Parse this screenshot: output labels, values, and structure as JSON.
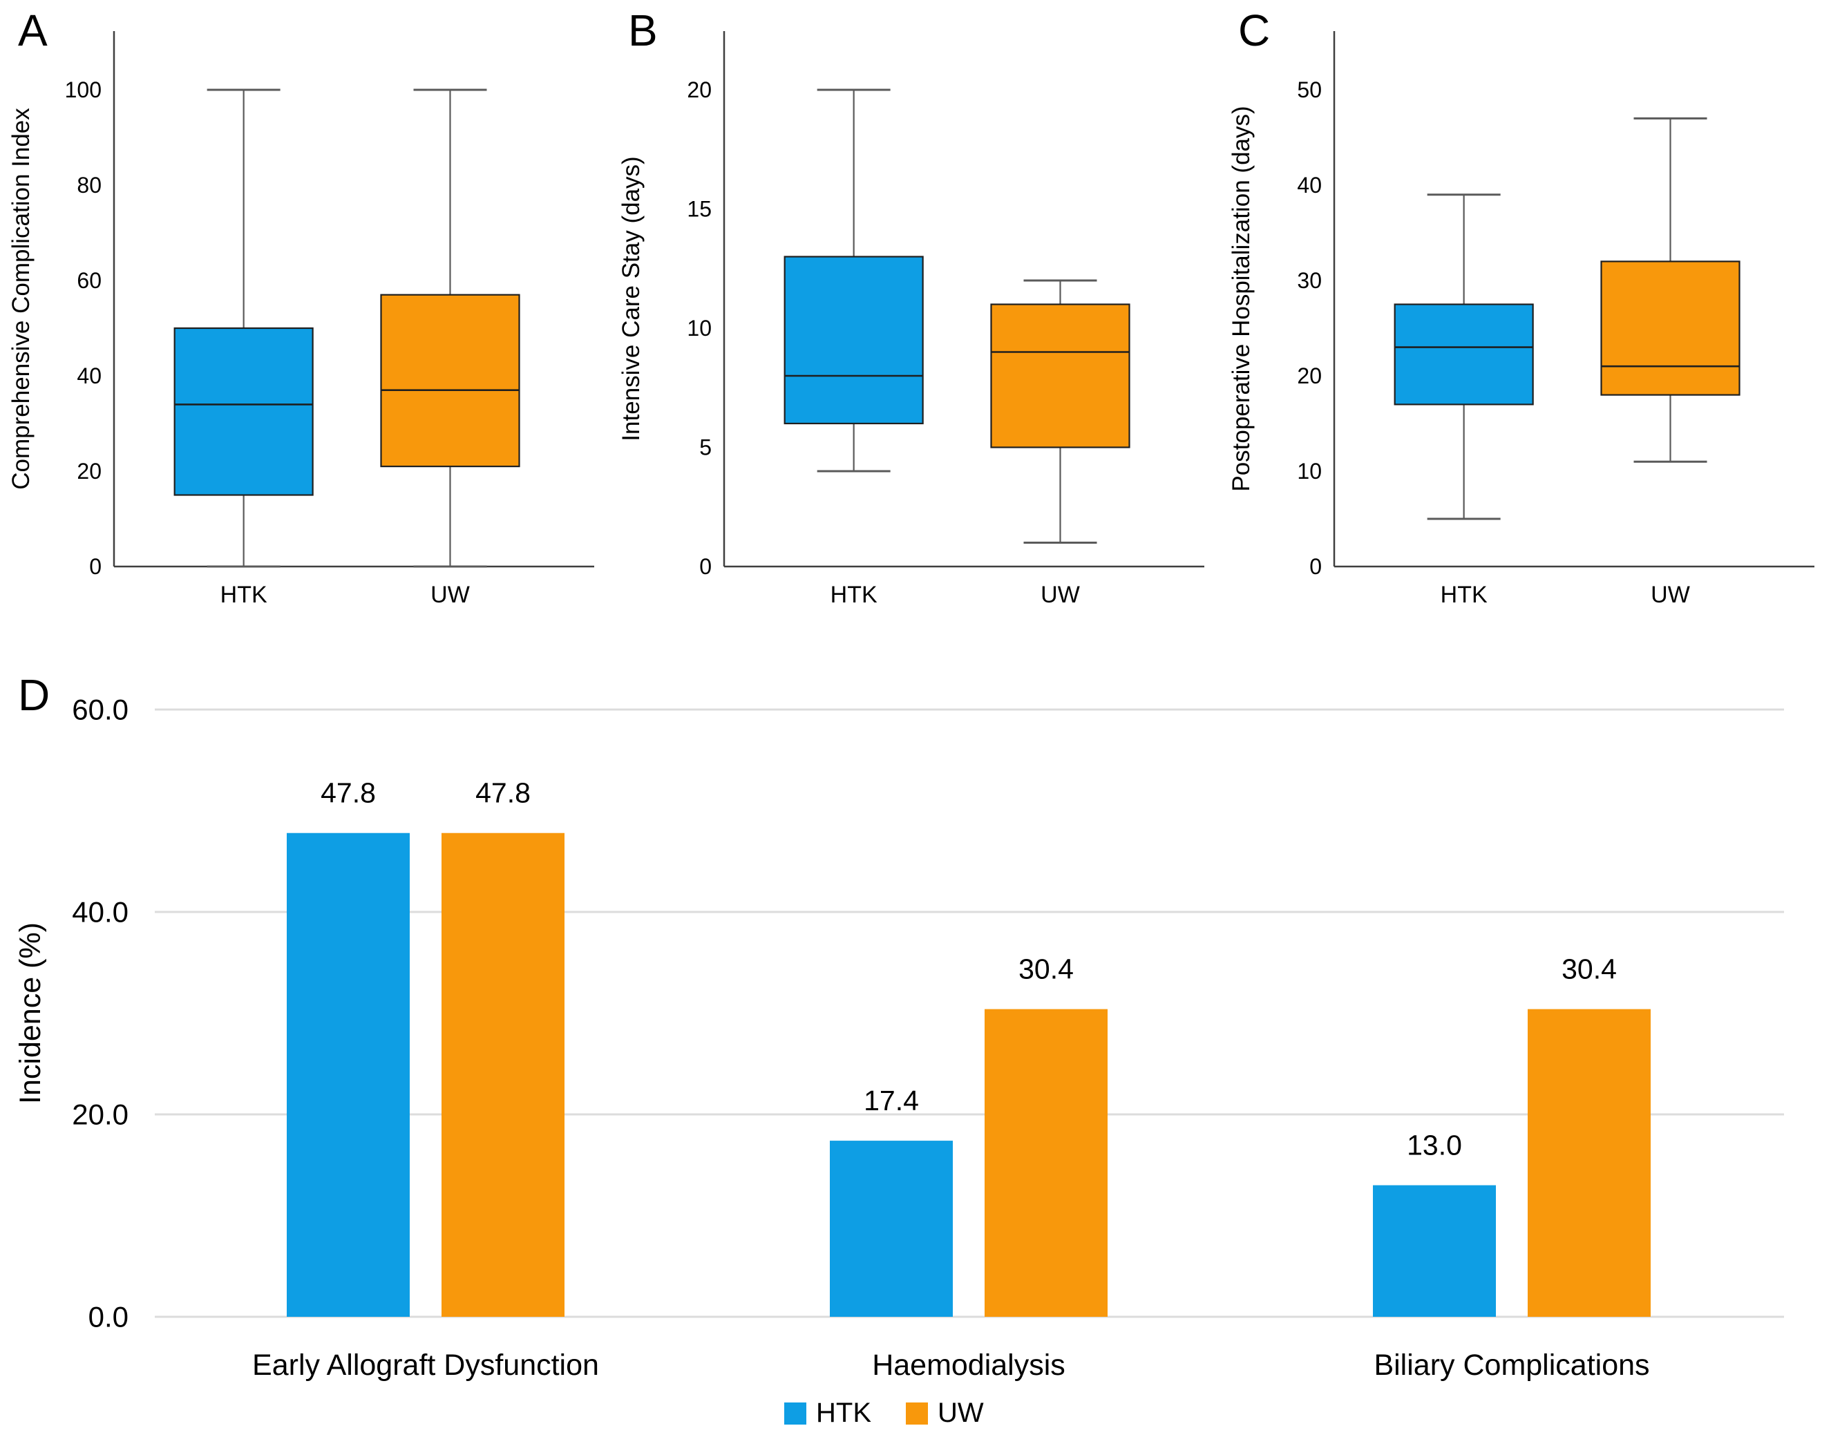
{
  "style": {
    "background": "#FFFFFF",
    "series_colors": {
      "HTK": "#0E9EE4",
      "UW": "#F8980C"
    },
    "box_border": "#1F1F1F",
    "median_color": "#1F1F1F",
    "whisker_color": "#5A5A5A",
    "spine_color": "#3F3F3F",
    "grid_color": "#DCDCDC",
    "text_color": "#000000"
  },
  "legend": {
    "items": [
      "HTK",
      "UW"
    ],
    "position": "bottom-center"
  },
  "chart_data": [
    {
      "type": "box",
      "panel": "A",
      "ylabel": "Comprehensive Complication Index",
      "ylim": [
        0,
        100
      ],
      "yticks": [
        0,
        20,
        40,
        60,
        80,
        100
      ],
      "categories": [
        "HTK",
        "UW"
      ],
      "grid": false,
      "series": [
        {
          "name": "HTK",
          "whisker_low": 0,
          "q1": 15,
          "median": 34,
          "q3": 50,
          "whisker_high": 100
        },
        {
          "name": "UW",
          "whisker_low": 0,
          "q1": 21,
          "median": 37,
          "q3": 57,
          "whisker_high": 100
        }
      ]
    },
    {
      "type": "box",
      "panel": "B",
      "ylabel": "Intensive Care Stay (days)",
      "ylim": [
        0,
        20
      ],
      "yticks": [
        0,
        5,
        10,
        15,
        20
      ],
      "categories": [
        "HTK",
        "UW"
      ],
      "grid": false,
      "series": [
        {
          "name": "HTK",
          "whisker_low": 4,
          "q1": 6,
          "median": 8,
          "q3": 13,
          "whisker_high": 20
        },
        {
          "name": "UW",
          "whisker_low": 1,
          "q1": 5,
          "median": 9,
          "q3": 11,
          "whisker_high": 12
        }
      ]
    },
    {
      "type": "box",
      "panel": "C",
      "ylabel": "Postoperative Hospitalization (days)",
      "ylim": [
        0,
        50
      ],
      "yticks": [
        0,
        10,
        20,
        30,
        40,
        50
      ],
      "categories": [
        "HTK",
        "UW"
      ],
      "grid": false,
      "series": [
        {
          "name": "HTK",
          "whisker_low": 5,
          "q1": 17,
          "median": 23,
          "q3": 27.5,
          "whisker_high": 39
        },
        {
          "name": "UW",
          "whisker_low": 11,
          "q1": 18,
          "median": 21,
          "q3": 32,
          "whisker_high": 47
        }
      ]
    },
    {
      "type": "bar",
      "panel": "D",
      "ylabel": "Incidence (%)",
      "ylim": [
        0,
        60
      ],
      "yticks": [
        0,
        20,
        40,
        60
      ],
      "ytick_labels": [
        "0.0",
        "20.0",
        "40.0",
        "60.0"
      ],
      "categories": [
        "Early Allograft Dysfunction",
        "Haemodialysis",
        "Biliary Complications"
      ],
      "grid": true,
      "value_labels": true,
      "value_label_decimals": 1,
      "series": [
        {
          "name": "HTK",
          "values": [
            47.8,
            17.4,
            13.0
          ]
        },
        {
          "name": "UW",
          "values": [
            47.8,
            30.4,
            30.4
          ]
        }
      ],
      "legend_items": [
        "HTK",
        "UW"
      ]
    }
  ]
}
